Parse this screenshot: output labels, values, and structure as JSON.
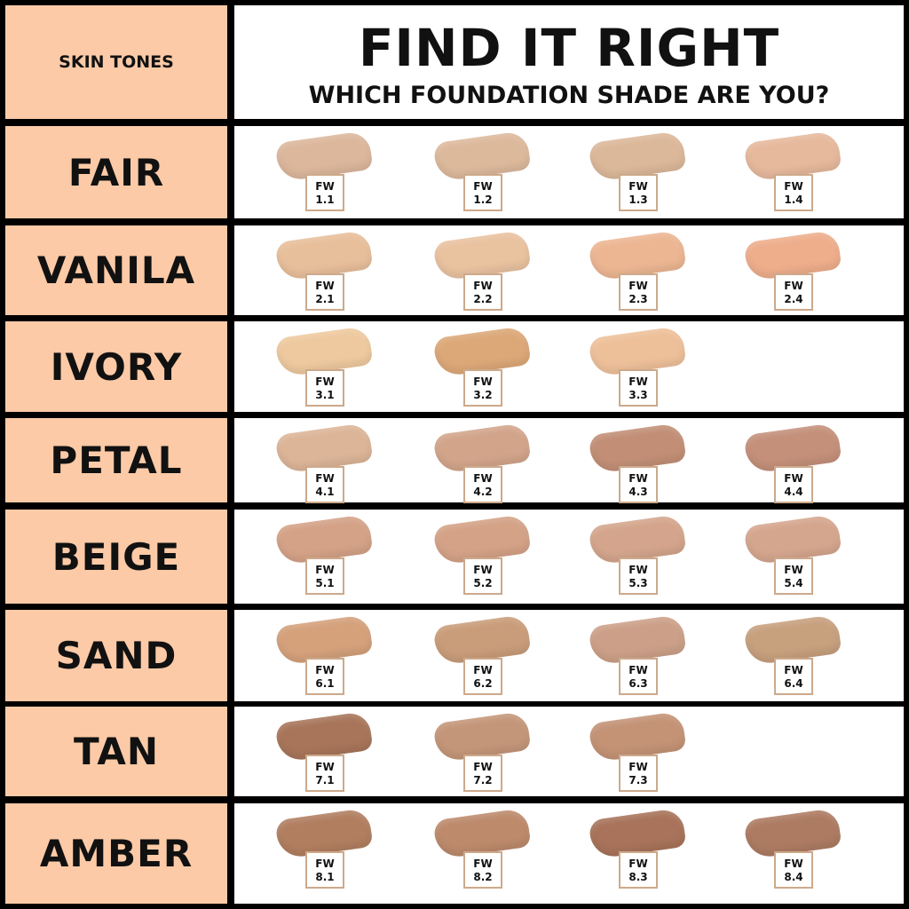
{
  "header": {
    "left_label": "SKIN TONES",
    "title": "FIND IT RIGHT",
    "subtitle": "WHICH FOUNDATION SHADE ARE YOU?"
  },
  "rows": [
    {
      "tone": "FAIR",
      "shades": [
        {
          "prefix": "FW",
          "code": "1.1",
          "color": "#dcb79c"
        },
        {
          "prefix": "FW",
          "code": "1.2",
          "color": "#ddb99c"
        },
        {
          "prefix": "FW",
          "code": "1.3",
          "color": "#dcb89a"
        },
        {
          "prefix": "FW",
          "code": "1.4",
          "color": "#e6b99c"
        }
      ]
    },
    {
      "tone": "VANILA",
      "shades": [
        {
          "prefix": "FW",
          "code": "2.1",
          "color": "#e8bf9b"
        },
        {
          "prefix": "FW",
          "code": "2.2",
          "color": "#e9c2a0"
        },
        {
          "prefix": "FW",
          "code": "2.3",
          "color": "#ecb692"
        },
        {
          "prefix": "FW",
          "code": "2.4",
          "color": "#eeae8c"
        }
      ]
    },
    {
      "tone": "IVORY",
      "shades": [
        {
          "prefix": "FW",
          "code": "3.1",
          "color": "#eec99f"
        },
        {
          "prefix": "FW",
          "code": "3.2",
          "color": "#dca878"
        },
        {
          "prefix": "FW",
          "code": "3.3",
          "color": "#eec09a"
        }
      ]
    },
    {
      "tone": "PETAL",
      "shades": [
        {
          "prefix": "FW",
          "code": "4.1",
          "color": "#dcb598"
        },
        {
          "prefix": "FW",
          "code": "4.2",
          "color": "#d2a58b"
        },
        {
          "prefix": "FW",
          "code": "4.3",
          "color": "#c28f76"
        },
        {
          "prefix": "FW",
          "code": "4.4",
          "color": "#c4907a"
        }
      ]
    },
    {
      "tone": "BEIGE",
      "shades": [
        {
          "prefix": "FW",
          "code": "5.1",
          "color": "#d4a287"
        },
        {
          "prefix": "FW",
          "code": "5.2",
          "color": "#d4a287"
        },
        {
          "prefix": "FW",
          "code": "5.3",
          "color": "#d4a58c"
        },
        {
          "prefix": "FW",
          "code": "5.4",
          "color": "#d5a68e"
        }
      ]
    },
    {
      "tone": "SAND",
      "shades": [
        {
          "prefix": "FW",
          "code": "6.1",
          "color": "#d4a17b"
        },
        {
          "prefix": "FW",
          "code": "6.2",
          "color": "#c99d7a"
        },
        {
          "prefix": "FW",
          "code": "6.3",
          "color": "#cca088"
        },
        {
          "prefix": "FW",
          "code": "6.4",
          "color": "#c7a07e"
        }
      ]
    },
    {
      "tone": "TAN",
      "shades": [
        {
          "prefix": "FW",
          "code": "7.1",
          "color": "#a8755a"
        },
        {
          "prefix": "FW",
          "code": "7.2",
          "color": "#c49679"
        },
        {
          "prefix": "FW",
          "code": "7.3",
          "color": "#c49376"
        }
      ]
    },
    {
      "tone": "AMBER",
      "shades": [
        {
          "prefix": "FW",
          "code": "8.1",
          "color": "#b17e60"
        },
        {
          "prefix": "FW",
          "code": "8.2",
          "color": "#bd8a6c"
        },
        {
          "prefix": "FW",
          "code": "8.3",
          "color": "#a8735a"
        },
        {
          "prefix": "FW",
          "code": "8.4",
          "color": "#ad7b62"
        }
      ]
    }
  ]
}
